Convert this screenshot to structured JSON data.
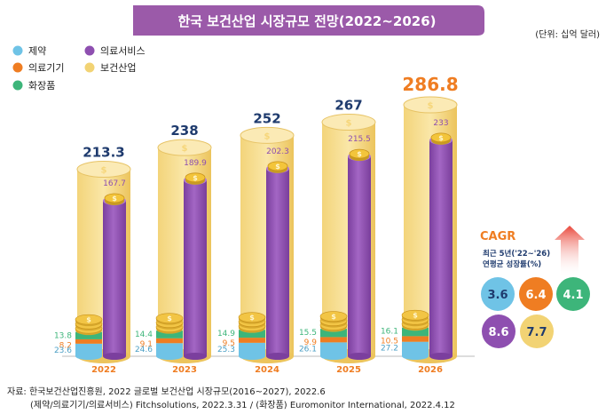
{
  "chart_data": {
    "type": "bar",
    "title": "한국 보건산업 시장규모 전망(2022~2026)",
    "unit": "(단위: 십억 달러)",
    "categories": [
      "2022",
      "2023",
      "2024",
      "2025",
      "2026"
    ],
    "totals": [
      213.3,
      238,
      252,
      267,
      286.8
    ],
    "series": [
      {
        "name": "제약",
        "color": "#6fc3e6",
        "values": [
          23.6,
          24.6,
          25.3,
          26.1,
          27.2
        ]
      },
      {
        "name": "의료기기",
        "color": "#ef7d22",
        "values": [
          8.2,
          9.1,
          9.5,
          9.9,
          10.5
        ]
      },
      {
        "name": "화장품",
        "color": "#3db57a",
        "values": [
          13.8,
          14.4,
          14.9,
          15.5,
          16.1
        ]
      },
      {
        "name": "의료서비스",
        "color": "#8e4fb0",
        "values": [
          167.7,
          189.9,
          202.3,
          215.5,
          233
        ]
      },
      {
        "name": "보건산업",
        "color": "#f2d374",
        "values": [
          213.3,
          238,
          252,
          267,
          286.8
        ]
      }
    ],
    "cagr": {
      "title": "CAGR",
      "subtitle1": "최근 5년('22~'26)",
      "subtitle2": "연평균 성장률(%)",
      "items": [
        {
          "value": "3.6",
          "color": "#6fc3e6",
          "text_color": "#1f3b6e"
        },
        {
          "value": "6.4",
          "color": "#ef7d22",
          "text_color": "#ffffff"
        },
        {
          "value": "4.1",
          "color": "#3db57a",
          "text_color": "#ffffff"
        },
        {
          "value": "8.6",
          "color": "#8e4fb0",
          "text_color": "#ffffff"
        },
        {
          "value": "7.7",
          "color": "#f2d374",
          "text_color": "#1f3b6e"
        }
      ]
    }
  },
  "source": {
    "line1": "자료: 한국보건산업진흥원, 2022 글로벌 보건산업 시장규모(2016~2027), 2022.6",
    "line2": "(제약/의료기기/의료서비스) Fitchsolutions, 2022.3.31 / (화장품) Euromonitor International, 2022.4.12"
  },
  "colors": {
    "title_bg": "#9b5aa9",
    "total_label": "#1f3b6e",
    "total_label_last": "#ef7d22",
    "year_label": "#ef7d22",
    "cagr_title": "#ef7d22"
  }
}
